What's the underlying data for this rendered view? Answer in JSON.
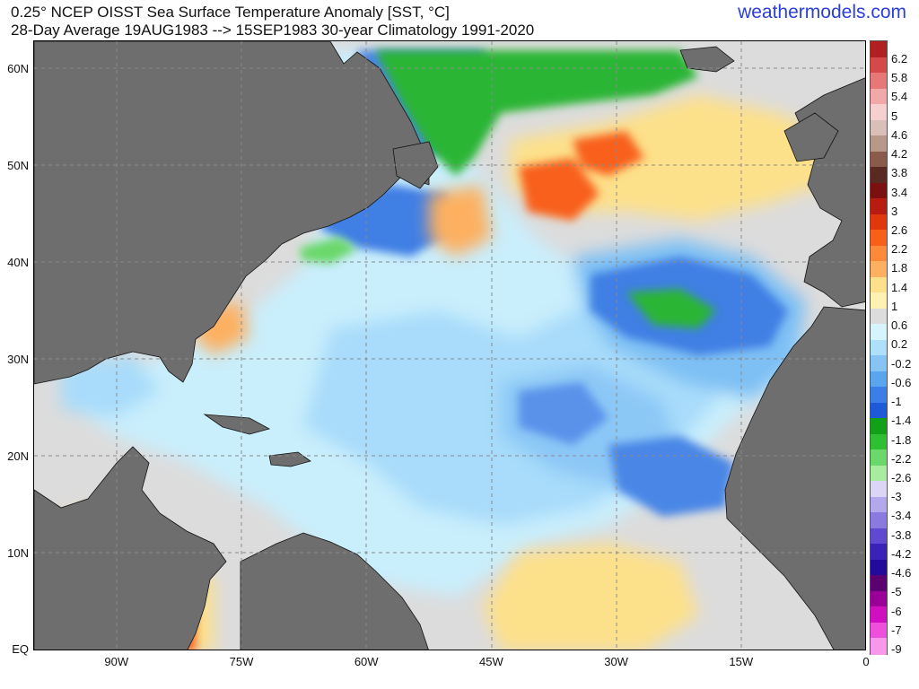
{
  "title": {
    "line1": "0.25° NCEP OISST Sea Surface Temperature Anomaly [SST, °C]",
    "line2": "28-Day Average 19AUG1983 --> 15SEP1983   30-year Climatology 1991-2020"
  },
  "brand": "weathermodels.com",
  "map": {
    "lon_range": [
      -100,
      0
    ],
    "lat_range": [
      0,
      63
    ],
    "lat_ticks": [
      "60N",
      "50N",
      "40N",
      "30N",
      "20N",
      "10N",
      "EQ"
    ],
    "lat_tick_values": [
      60,
      50,
      40,
      30,
      20,
      10,
      0
    ],
    "lon_ticks": [
      "90W",
      "75W",
      "60W",
      "45W",
      "30W",
      "15W",
      "0"
    ],
    "lon_tick_values": [
      -90,
      -75,
      -60,
      -45,
      -30,
      -15,
      0
    ],
    "colors": {
      "land": "#6e6e6e",
      "ocean_near_zero": "#dcdcdc",
      "gridline": "#9a9a9a"
    }
  },
  "colorbar": {
    "labels": [
      "6.2",
      "5.8",
      "5.4",
      "5",
      "4.6",
      "4.2",
      "3.8",
      "3.4",
      "3",
      "2.6",
      "2.2",
      "1.8",
      "1.4",
      "1",
      "0.6",
      "0.2",
      "-0.2",
      "-0.6",
      "-1",
      "-1.4",
      "-1.8",
      "-2.2",
      "-2.6",
      "-3",
      "-3.4",
      "-3.8",
      "-4.2",
      "-4.6",
      "-5",
      "-6",
      "-7",
      "-9"
    ],
    "colors": [
      "#b02020",
      "#d44a4a",
      "#e87878",
      "#f0a8a8",
      "#f6d0d0",
      "#d8c0b8",
      "#b89888",
      "#8a5a4a",
      "#5a2a22",
      "#7a1010",
      "#b81c10",
      "#e0380c",
      "#f8601a",
      "#fc8a3a",
      "#fdb060",
      "#fde08a",
      "#fff2b0",
      "#dcdcdc",
      "#d6f4fc",
      "#aee0fa",
      "#86c4f4",
      "#5aa6ee",
      "#3a7ee6",
      "#1e5ad8",
      "#12a018",
      "#2ec032",
      "#6ad86a",
      "#a8eca0",
      "#dcd6f4",
      "#b4a8ec",
      "#8a7ae0",
      "#6048d0",
      "#3a22b8",
      "#240a9a",
      "#5a0070",
      "#9a0098",
      "#d010c0",
      "#ee50dc",
      "#f898ec"
    ]
  }
}
